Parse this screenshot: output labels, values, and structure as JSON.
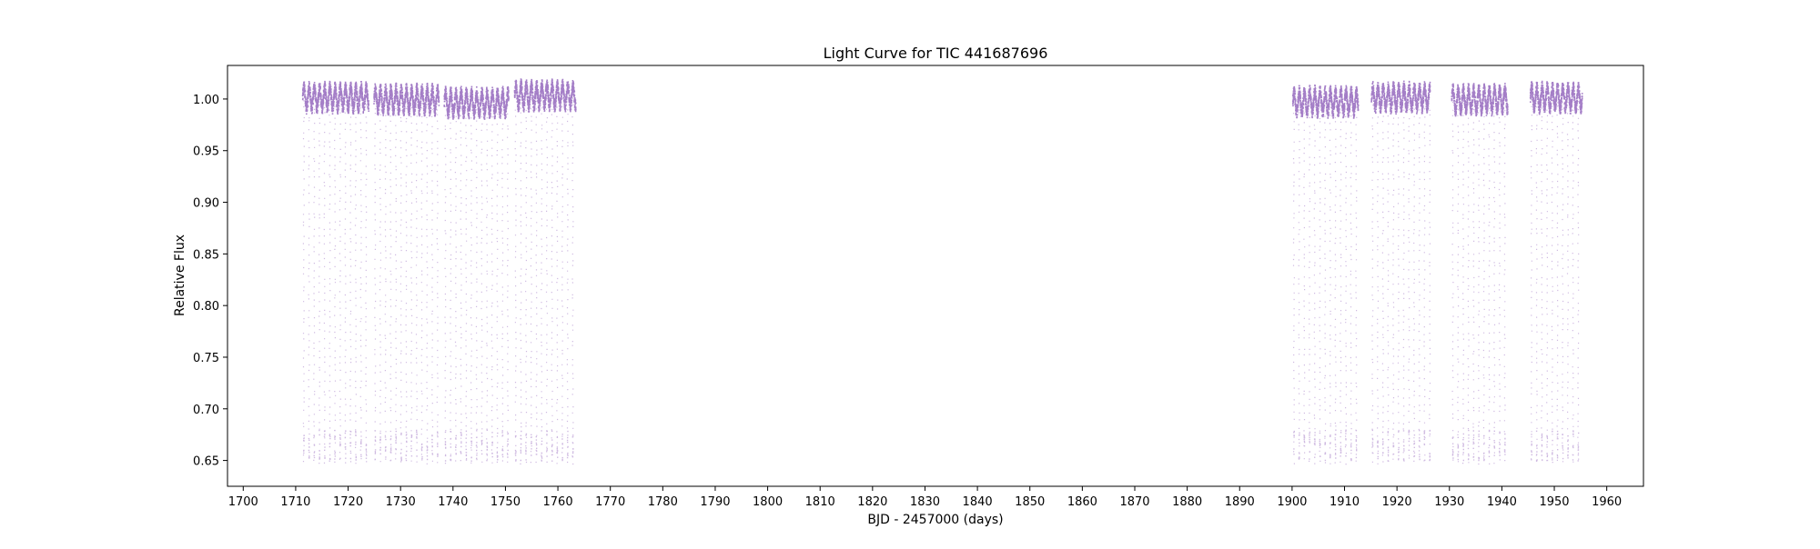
{
  "chart_data": {
    "type": "scatter",
    "title": "Light Curve for TIC 441687696",
    "xlabel": "BJD - 2457000 (days)",
    "ylabel": "Relative Flux",
    "xlim": [
      1697,
      1967
    ],
    "ylim": [
      0.625,
      1.0325
    ],
    "xticks": [
      1700,
      1710,
      1720,
      1730,
      1740,
      1750,
      1760,
      1770,
      1780,
      1790,
      1800,
      1810,
      1820,
      1830,
      1840,
      1850,
      1860,
      1870,
      1880,
      1890,
      1900,
      1910,
      1920,
      1930,
      1940,
      1950,
      1960
    ],
    "xtick_labels": [
      "1700",
      "1710",
      "1720",
      "1730",
      "1740",
      "1750",
      "1760",
      "1770",
      "1780",
      "1790",
      "1800",
      "1810",
      "1820",
      "1830",
      "1840",
      "1850",
      "1860",
      "1870",
      "1880",
      "1890",
      "1900",
      "1910",
      "1920",
      "1930",
      "1940",
      "1950",
      "1960"
    ],
    "yticks": [
      0.65,
      0.7,
      0.75,
      0.8,
      0.85,
      0.9,
      0.95,
      1.0
    ],
    "ytick_labels": [
      "0.65",
      "0.70",
      "0.75",
      "0.80",
      "0.85",
      "0.90",
      "0.95",
      "1.00"
    ],
    "grid": false,
    "color": "#9467bd",
    "eclipse_period_days": 0.99,
    "eclipse_min_flux": 0.65,
    "baseline_flux": 1.0,
    "baseline_amplitude": 0.01,
    "series": [
      {
        "segments": [
          {
            "start": 1711.2,
            "end": 1723.8,
            "baseline_offset": 0.002
          },
          {
            "start": 1724.8,
            "end": 1737.2,
            "baseline_offset": 0.0
          },
          {
            "start": 1738.2,
            "end": 1750.5,
            "baseline_offset": -0.003
          },
          {
            "start": 1751.6,
            "end": 1763.3,
            "baseline_offset": 0.004
          },
          {
            "start": 1900.0,
            "end": 1912.5,
            "baseline_offset": -0.002
          },
          {
            "start": 1915.0,
            "end": 1926.2,
            "baseline_offset": 0.002
          },
          {
            "start": 1930.3,
            "end": 1941.0,
            "baseline_offset": 0.0
          },
          {
            "start": 1945.3,
            "end": 1955.2,
            "baseline_offset": 0.002
          }
        ]
      }
    ]
  }
}
